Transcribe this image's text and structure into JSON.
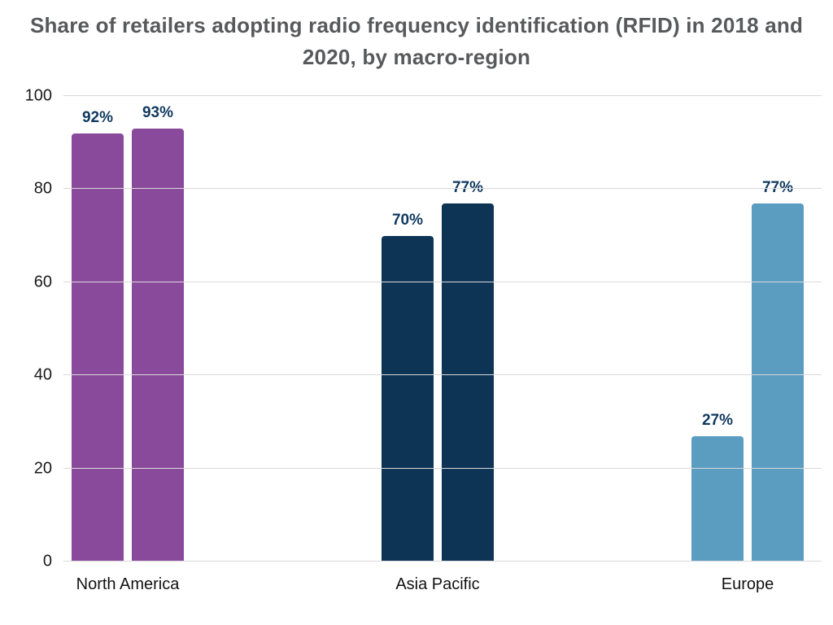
{
  "title": "Share of retailers adopting radio frequency identification (RFID) in 2018 and 2020, by macro-region",
  "chart_data": {
    "type": "bar",
    "categories": [
      "North America",
      "Asia Pacific",
      "Europe"
    ],
    "series": [
      {
        "name": "2018",
        "values": [
          92,
          70,
          27
        ]
      },
      {
        "name": "2020",
        "values": [
          93,
          77,
          77
        ]
      }
    ],
    "value_suffix": "%",
    "ylim": [
      0,
      100
    ],
    "yticks": [
      0,
      20,
      40,
      60,
      80,
      100
    ],
    "grid": true,
    "legend_position": "none",
    "category_colors": {
      "North America": "#8a4a9c",
      "Asia Pacific": "#0d3355",
      "Europe": "#5b9cc1"
    },
    "value_label_color": "#10395f",
    "gridline_color": "#d9d9d9"
  }
}
